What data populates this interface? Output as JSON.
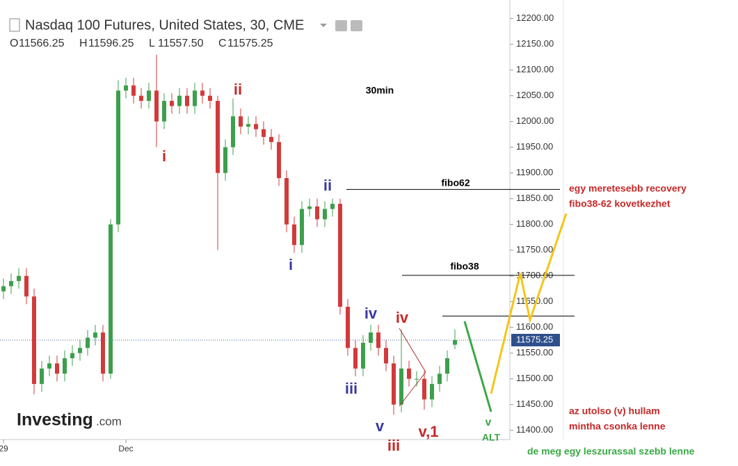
{
  "chart_data": {
    "type": "candlestick",
    "title": "Nasdaq 100 Futures, United States, 30, CME",
    "header_ohlc": [
      {
        "key": "O",
        "text": "11566.25"
      },
      {
        "key": "H",
        "text": "11596.25"
      },
      {
        "key": "L",
        "text": "11557.50"
      },
      {
        "key": "C",
        "text": "11575.25"
      }
    ],
    "categories": [
      "29",
      null,
      null,
      null,
      null,
      null,
      null,
      null,
      null,
      null,
      null,
      null,
      null,
      null,
      null,
      null,
      "Dec",
      null,
      null,
      null,
      null,
      null,
      null,
      null,
      null,
      null,
      null,
      null,
      null,
      null,
      null,
      null,
      null,
      null,
      null,
      null,
      null,
      null,
      null,
      null,
      null,
      null,
      null,
      null,
      null,
      null,
      null,
      null,
      null,
      null,
      null,
      null,
      null,
      null,
      null,
      null,
      null,
      null,
      null,
      null
    ],
    "open": [
      11670,
      11680,
      11690,
      11700,
      11660,
      11490,
      11520,
      11530,
      11510,
      11540,
      11550,
      11560,
      11580,
      11590,
      11510,
      11800,
      12060,
      12070,
      12050,
      12040,
      12060,
      12000,
      12040,
      12030,
      12050,
      12030,
      12060,
      12050,
      12040,
      11900,
      11950,
      12010,
      11990,
      11995,
      11985,
      11970,
      11960,
      11890,
      11800,
      11760,
      11830,
      11835,
      11810,
      11830,
      11840,
      11640,
      11560,
      11520,
      11570,
      11590,
      11560,
      11530,
      11450,
      11520,
      11500,
      11500,
      11460,
      11490,
      11510,
      11566.25
    ],
    "high": [
      11695,
      11705,
      11715,
      11715,
      11675,
      11535,
      11545,
      11545,
      11555,
      11565,
      11575,
      11595,
      11605,
      11605,
      11810,
      12080,
      12085,
      12085,
      12065,
      12075,
      12130,
      12055,
      12055,
      12065,
      12065,
      12075,
      12075,
      12065,
      12050,
      11965,
      12045,
      12025,
      12010,
      12010,
      12000,
      11985,
      11975,
      11905,
      11815,
      11845,
      11850,
      11850,
      11845,
      11850,
      11850,
      11655,
      11575,
      11585,
      11605,
      11605,
      11575,
      11545,
      11595,
      11535,
      11515,
      11515,
      11505,
      11525,
      11555,
      11596.25
    ],
    "low": [
      11655,
      11665,
      11675,
      11645,
      11470,
      11475,
      11505,
      11495,
      11495,
      11525,
      11535,
      11545,
      11565,
      11495,
      11500,
      11785,
      12045,
      12035,
      12025,
      12025,
      11950,
      11985,
      12015,
      12015,
      12015,
      12015,
      12035,
      12025,
      11750,
      11885,
      11935,
      11975,
      11975,
      11970,
      11955,
      11945,
      11875,
      11785,
      11745,
      11745,
      11815,
      11795,
      11795,
      11815,
      11625,
      11545,
      11505,
      11505,
      11555,
      11545,
      11515,
      11430,
      11435,
      11485,
      11485,
      11440,
      11445,
      11475,
      11495,
      11557.5
    ],
    "close": [
      11680,
      11690,
      11700,
      11660,
      11490,
      11520,
      11530,
      11510,
      11540,
      11550,
      11560,
      11580,
      11590,
      11510,
      11800,
      12060,
      12070,
      12050,
      12040,
      12060,
      12000,
      12040,
      12030,
      12050,
      12030,
      12060,
      12050,
      12040,
      11900,
      11950,
      12010,
      11990,
      11995,
      11985,
      11970,
      11960,
      11890,
      11800,
      11760,
      11830,
      11835,
      11810,
      11830,
      11840,
      11640,
      11560,
      11520,
      11570,
      11590,
      11560,
      11530,
      11450,
      11520,
      11500,
      11500,
      11460,
      11490,
      11510,
      11540,
      11575.25
    ],
    "up_color": "#3c9f4c",
    "down_color": "#d23a3a",
    "ylim": [
      11382,
      12236
    ],
    "yticks": [
      {
        "value": 11400,
        "label": "11400.00"
      },
      {
        "value": 11450,
        "label": "11450.00"
      },
      {
        "value": 11500,
        "label": "11500.00"
      },
      {
        "value": 11550,
        "label": "11550.00"
      },
      {
        "value": 11600,
        "label": "11600.00"
      },
      {
        "value": 11650,
        "label": "11650.00"
      },
      {
        "value": 11700,
        "label": "11700.00"
      },
      {
        "value": 11750,
        "label": "11750.00"
      },
      {
        "value": 11800,
        "label": "11800.00"
      },
      {
        "value": 11850,
        "label": "11850.00"
      },
      {
        "value": 11900,
        "label": "11900.00"
      },
      {
        "value": 11950,
        "label": "11950.00"
      },
      {
        "value": 12000,
        "label": "12000.00"
      },
      {
        "value": 12050,
        "label": "12050.00"
      },
      {
        "value": 12100,
        "label": "12100.00"
      },
      {
        "value": 12150,
        "label": "12150.00"
      },
      {
        "value": 12200,
        "label": "12200.00"
      }
    ],
    "last_price": {
      "value": 11575.25,
      "label": "11575.25"
    },
    "hlines": [
      11868,
      11701,
      11622
    ],
    "annotations": [
      "i",
      "ii",
      "ii",
      "i",
      "iv",
      "iv",
      "iii",
      "v",
      "iii",
      "v,1",
      "v",
      "ALT",
      "30min",
      "fibo62",
      "fibo38",
      "egy meretesebb recovery",
      "fibo38-62 kovetkezhet",
      "az utolso (v) hullam",
      "mintha csonka lenne",
      "de meg egy leszurassal szebb lenne"
    ],
    "logo": [
      "Investing",
      ".com"
    ]
  }
}
